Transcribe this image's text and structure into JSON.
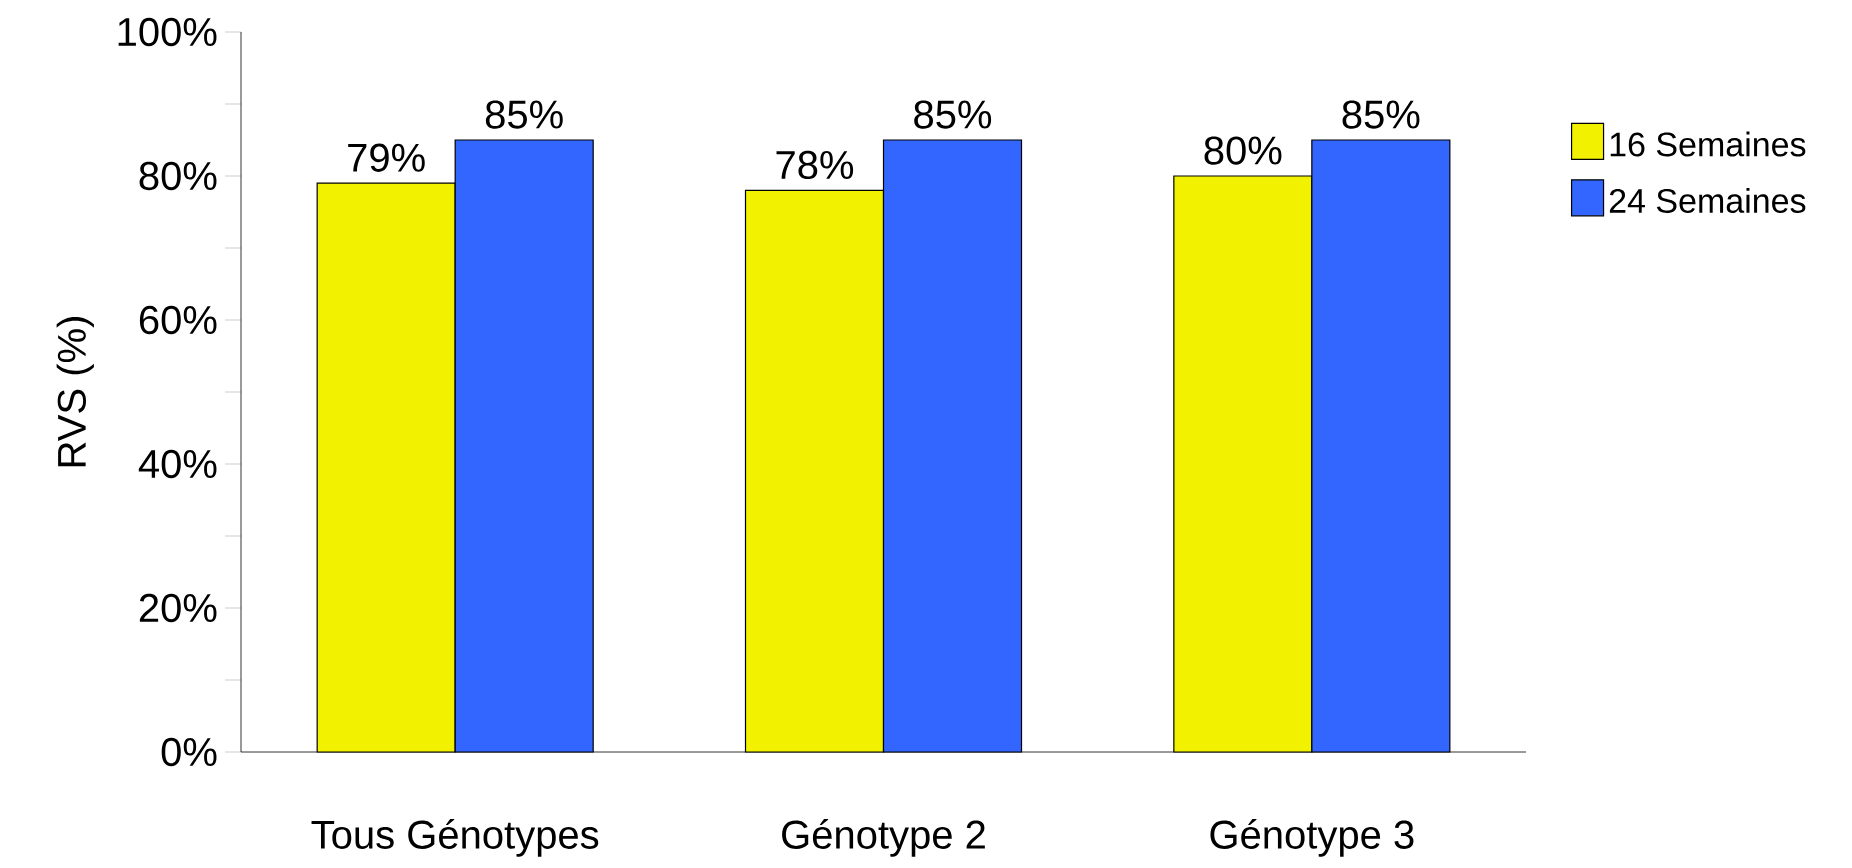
{
  "chart_data": {
    "type": "bar",
    "ylabel": "RVS (%)",
    "categories": [
      "Tous Génotypes",
      "Génotype 2",
      "Génotype 3"
    ],
    "series": [
      {
        "name": "16 Semaines",
        "color": "#f2f200",
        "values": [
          79,
          78,
          80
        ],
        "value_labels": [
          "79%",
          "78%",
          "80%"
        ]
      },
      {
        "name": "24 Semaines",
        "color": "#3366ff",
        "values": [
          85,
          85,
          85
        ],
        "value_labels": [
          "85%",
          "85%",
          "85%"
        ]
      }
    ],
    "ylim": [
      0,
      100
    ],
    "yticks": [
      {
        "value": 0,
        "label": "0%"
      },
      {
        "value": 10,
        "label": null
      },
      {
        "value": 20,
        "label": "20%"
      },
      {
        "value": 30,
        "label": null
      },
      {
        "value": 40,
        "label": "40%"
      },
      {
        "value": 50,
        "label": null
      },
      {
        "value": 60,
        "label": "60%"
      },
      {
        "value": 70,
        "label": null
      },
      {
        "value": 80,
        "label": "80%"
      },
      {
        "value": 90,
        "label": null
      },
      {
        "value": 100,
        "label": "100%"
      }
    ],
    "legend": "right"
  }
}
